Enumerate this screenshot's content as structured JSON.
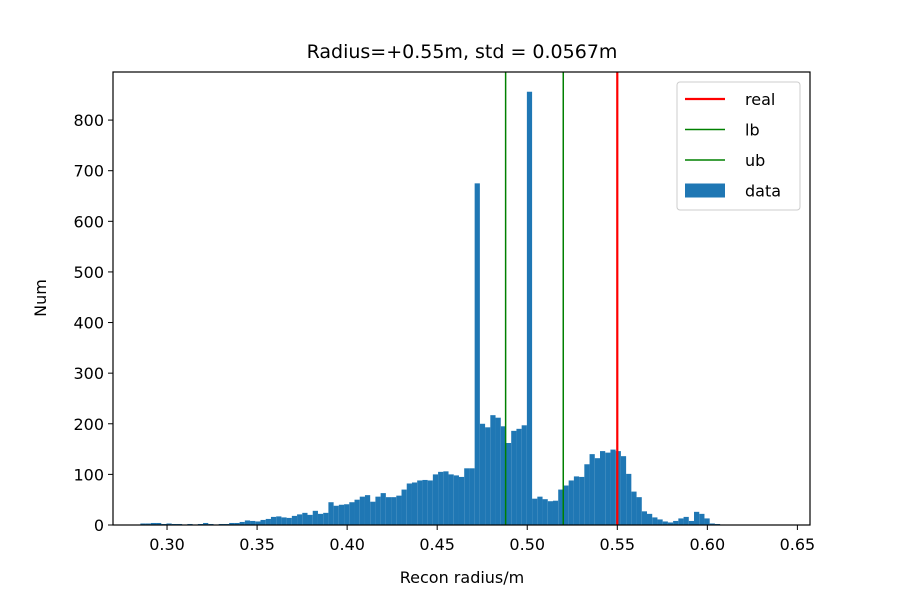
{
  "chart_data": {
    "type": "bar",
    "title": "Radius=+0.55m, std = 0.0567m",
    "xlabel": "Recon radius/m",
    "ylabel": "Num",
    "xlim": [
      0.27,
      0.657
    ],
    "ylim": [
      0,
      895
    ],
    "xticks": [
      "0.30",
      "0.35",
      "0.40",
      "0.45",
      "0.50",
      "0.55",
      "0.60",
      "0.65"
    ],
    "yticks": [
      "0",
      "100",
      "200",
      "300",
      "400",
      "500",
      "600",
      "700",
      "800"
    ],
    "grid": false,
    "legend_position": "top-right",
    "bin_start": 0.2852,
    "bin_width": 0.0029,
    "series": [
      {
        "name": "data",
        "color": "#1f77b4",
        "values": [
          3,
          3,
          4,
          4,
          2,
          3,
          2,
          2,
          1,
          2,
          1,
          2,
          4,
          2,
          1,
          2,
          2,
          4,
          4,
          6,
          9,
          8,
          7,
          10,
          12,
          16,
          17,
          15,
          14,
          18,
          21,
          24,
          20,
          28,
          22,
          24,
          45,
          38,
          40,
          41,
          45,
          50,
          56,
          59,
          46,
          56,
          63,
          55,
          55,
          58,
          70,
          82,
          84,
          88,
          89,
          88,
          100,
          105,
          106,
          100,
          98,
          95,
          112,
          112,
          675,
          200,
          193,
          217,
          212,
          195,
          162,
          186,
          190,
          197,
          856,
          52,
          56,
          51,
          47,
          48,
          70,
          78,
          88,
          96,
          95,
          120,
          140,
          132,
          146,
          143,
          149,
          146,
          136,
          101,
          66,
          55,
          27,
          22,
          15,
          11,
          7,
          5,
          8,
          13,
          16,
          8,
          26,
          22,
          13,
          3,
          2,
          1
        ]
      }
    ],
    "lines": [
      {
        "name": "real",
        "x": 0.55,
        "color": "#ff0000"
      },
      {
        "name": "lb",
        "x": 0.488,
        "color": "#008000"
      },
      {
        "name": "ub",
        "x": 0.52,
        "color": "#008000"
      }
    ]
  }
}
